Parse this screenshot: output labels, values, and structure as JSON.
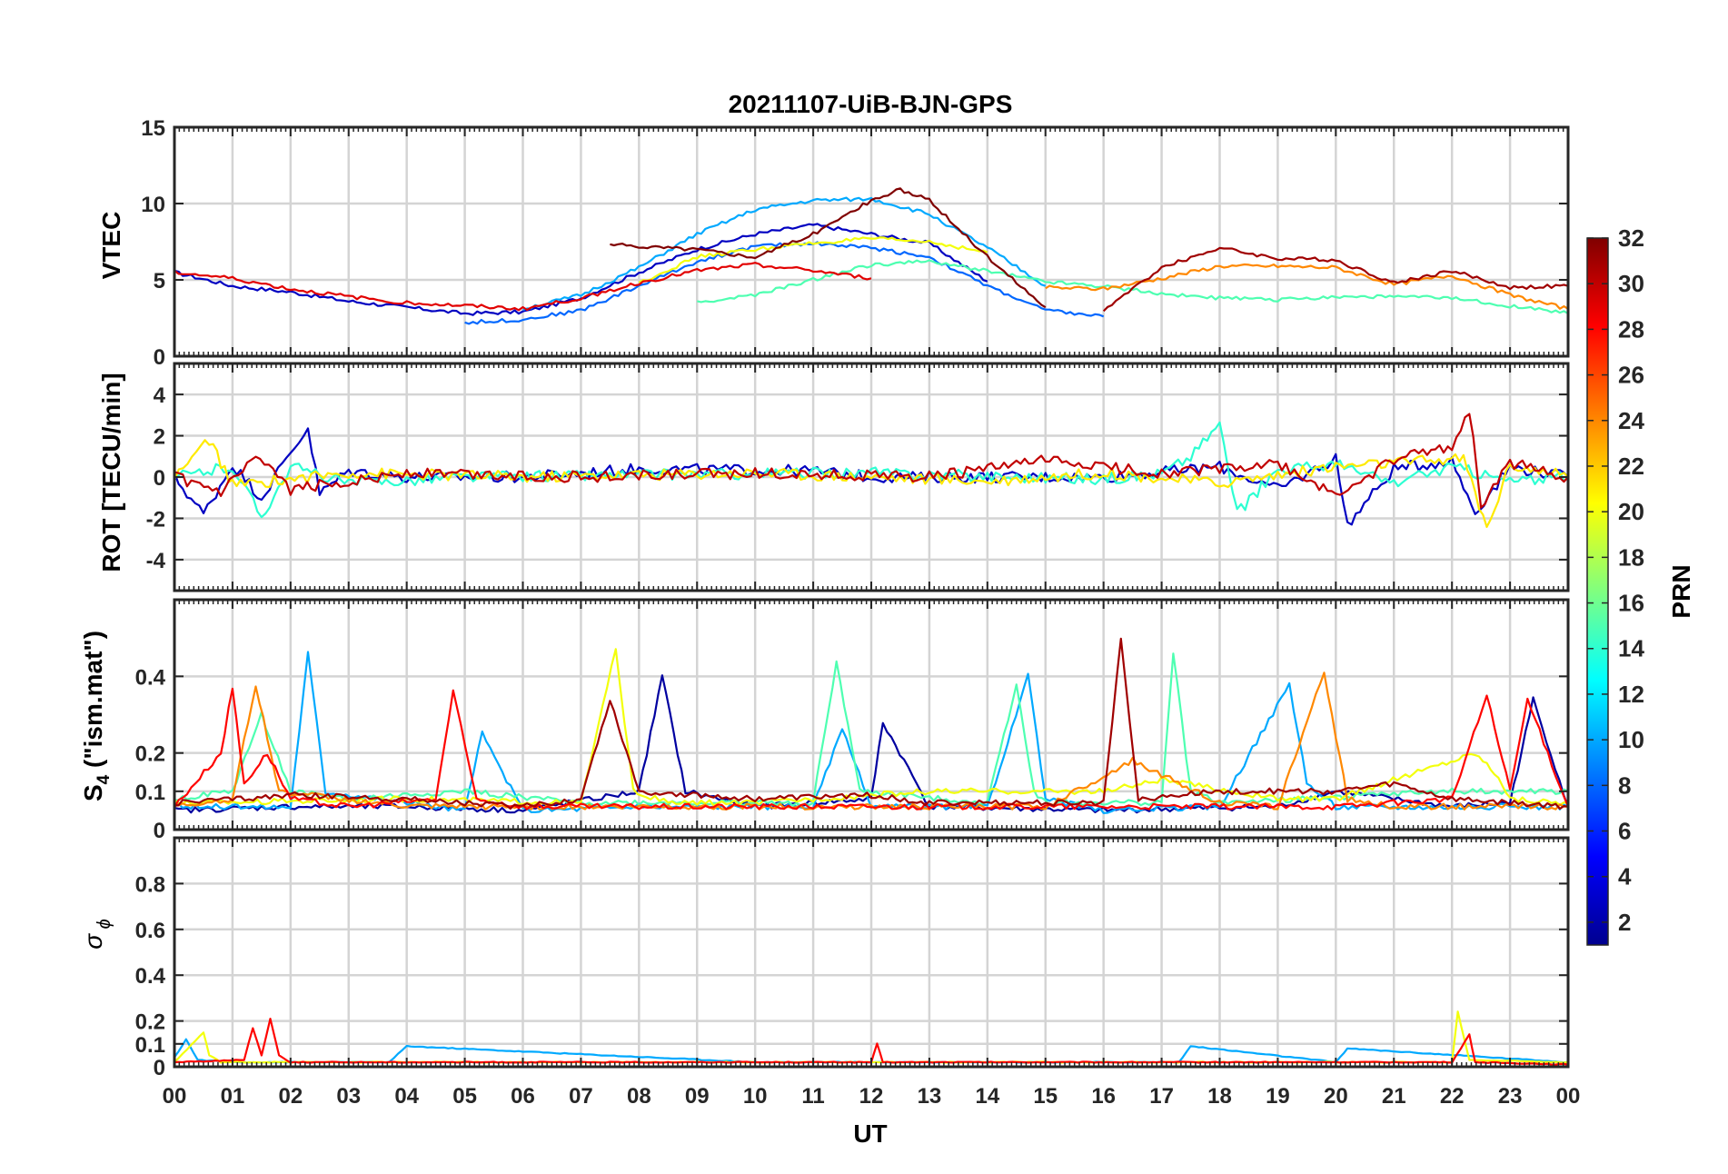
{
  "figure": {
    "title": "20211107-UiB-BJN-GPS"
  },
  "chart_data": [
    {
      "type": "line",
      "panel": "vtec",
      "ylabel": "VTEC",
      "ylim": [
        0,
        15
      ],
      "yticks": [
        0,
        5,
        10,
        15
      ],
      "xlim": [
        0,
        24
      ],
      "grid": true,
      "series": [
        {
          "prn": 3,
          "x": [
            0,
            1,
            2,
            3,
            4,
            5,
            6,
            7,
            8,
            9,
            10,
            11,
            12,
            13,
            14
          ],
          "y": [
            5.5,
            4.6,
            4.2,
            3.6,
            3.2,
            2.8,
            2.9,
            3.8,
            5.5,
            7.0,
            8.0,
            8.6,
            8.0,
            7.4,
            4.9
          ]
        },
        {
          "prn": 8,
          "x": [
            5,
            6,
            7,
            8,
            9,
            10,
            11,
            12,
            13,
            14,
            15,
            16
          ],
          "y": [
            2.2,
            2.4,
            3.0,
            4.6,
            6.2,
            7.2,
            7.4,
            7.1,
            6.5,
            4.6,
            3.0,
            2.6
          ]
        },
        {
          "prn": 10,
          "x": [
            6,
            7,
            8,
            9,
            10,
            11,
            12,
            13,
            14,
            15
          ],
          "y": [
            3.1,
            4.0,
            5.8,
            8.0,
            9.6,
            10.2,
            10.3,
            9.3,
            7.1,
            4.6
          ]
        },
        {
          "prn": 15,
          "x": [
            9,
            10,
            11,
            12,
            13,
            14,
            15,
            16,
            17,
            18,
            19,
            20,
            21,
            22,
            23,
            24
          ],
          "y": [
            3.5,
            4.0,
            5.0,
            6.0,
            6.2,
            5.6,
            4.9,
            4.6,
            4.1,
            3.8,
            3.7,
            3.9,
            3.9,
            3.8,
            3.3,
            2.8
          ]
        },
        {
          "prn": 20,
          "x": [
            8,
            9,
            10,
            11,
            12,
            13,
            14
          ],
          "y": [
            4.8,
            6.5,
            7.0,
            7.4,
            7.7,
            7.5,
            6.8
          ]
        },
        {
          "prn": 24,
          "x": [
            15,
            16,
            17,
            18,
            19,
            20,
            21,
            22,
            23,
            24
          ],
          "y": [
            4.5,
            4.4,
            5.1,
            5.9,
            5.9,
            5.8,
            4.7,
            5.3,
            4.0,
            3.1
          ]
        },
        {
          "prn": 29,
          "x": [
            0,
            1,
            2,
            3,
            4,
            5,
            6,
            7,
            8,
            9,
            10,
            11,
            12
          ],
          "y": [
            5.5,
            5.1,
            4.4,
            3.9,
            3.5,
            3.3,
            3.1,
            3.8,
            4.8,
            5.6,
            6.0,
            5.6,
            5.1
          ]
        },
        {
          "prn": 32,
          "x": [
            7.5,
            8,
            9,
            10,
            11,
            12,
            12.5,
            13,
            14,
            15
          ],
          "y": [
            7.3,
            7.2,
            7.0,
            6.5,
            8.0,
            10.2,
            10.9,
            10.2,
            6.5,
            3.2
          ]
        },
        {
          "prn": 31,
          "x": [
            16,
            17,
            18,
            19,
            20,
            21,
            22,
            23,
            24
          ],
          "y": [
            3.0,
            5.8,
            7.1,
            6.4,
            6.3,
            4.8,
            5.6,
            4.5,
            4.6
          ]
        }
      ]
    },
    {
      "type": "line",
      "panel": "rot",
      "ylabel": "ROT [TECU/min]",
      "ylim": [
        -5.5,
        5.5
      ],
      "yticks": [
        -4,
        -2,
        0,
        2,
        4
      ],
      "xlim": [
        0,
        24
      ],
      "grid": true,
      "series": [
        {
          "prn": 3,
          "x": [
            0,
            0.5,
            1,
            1.5,
            2,
            2.3,
            2.5,
            3,
            4,
            6,
            8,
            11,
            12,
            16,
            18,
            19,
            20,
            20.2,
            21,
            22,
            22.4,
            23,
            24
          ],
          "y": [
            0,
            -1.8,
            0.6,
            -1.0,
            1.2,
            2.4,
            -0.8,
            0.3,
            0,
            0,
            0.4,
            0.3,
            0,
            0,
            0.5,
            -0.6,
            0.9,
            -2.3,
            0.4,
            0.8,
            -1.7,
            0.5,
            0
          ]
        },
        {
          "prn": 14,
          "x": [
            0,
            1,
            1.5,
            2,
            3,
            5,
            8,
            12,
            16,
            17,
            17.5,
            18,
            18.3,
            19,
            20,
            21,
            22,
            23,
            24
          ],
          "y": [
            0,
            0.5,
            -1.9,
            0.5,
            -0.3,
            0,
            0.1,
            0.2,
            -0.1,
            0.2,
            1.0,
            2.6,
            -1.8,
            0.4,
            0.6,
            -0.3,
            0.5,
            -0.2,
            0
          ]
        },
        {
          "prn": 21,
          "x": [
            0,
            0.6,
            1,
            3,
            6,
            10,
            14,
            16,
            18,
            20,
            22.2,
            22.6,
            23,
            24
          ],
          "y": [
            0,
            1.8,
            -0.4,
            0.2,
            0,
            0.2,
            -0.2,
            0.2,
            -0.3,
            0.5,
            0.9,
            -2.5,
            0.6,
            0
          ]
        },
        {
          "prn": 30,
          "x": [
            0,
            0.8,
            1.4,
            2,
            4,
            7,
            10,
            13,
            15,
            17,
            19,
            20,
            21,
            22,
            22.3,
            22.5,
            23,
            24
          ],
          "y": [
            0,
            -0.8,
            0.9,
            -0.6,
            0.2,
            0,
            0.2,
            0,
            0.8,
            0.2,
            0.6,
            -0.9,
            0.8,
            1.5,
            3.3,
            -1.4,
            0.7,
            0
          ]
        }
      ]
    },
    {
      "type": "line",
      "panel": "s4",
      "ylabel": "S4 (\"ism.mat\")",
      "ylim": [
        0,
        0.6
      ],
      "yticks": [
        0,
        0.1,
        0.2,
        0.4
      ],
      "xlim": [
        0,
        24
      ],
      "grid": true,
      "series": [
        {
          "prn": 2,
          "x": [
            0,
            2,
            4,
            6,
            8,
            8.4,
            8.8,
            10,
            12,
            12.2,
            13,
            16,
            19,
            20,
            22,
            23,
            23.4,
            24
          ],
          "y": [
            0.05,
            0.06,
            0.06,
            0.05,
            0.1,
            0.4,
            0.1,
            0.06,
            0.08,
            0.28,
            0.06,
            0.05,
            0.06,
            0.1,
            0.06,
            0.07,
            0.34,
            0.06
          ]
        },
        {
          "prn": 10,
          "x": [
            0,
            2,
            2.3,
            2.6,
            5,
            5.3,
            6,
            8,
            10,
            11,
            11.5,
            12,
            14,
            14.7,
            15,
            16,
            18,
            19.2,
            19.5,
            20,
            22,
            24
          ],
          "y": [
            0.06,
            0.06,
            0.46,
            0.1,
            0.05,
            0.25,
            0.05,
            0.06,
            0.06,
            0.06,
            0.26,
            0.06,
            0.06,
            0.4,
            0.08,
            0.05,
            0.06,
            0.38,
            0.12,
            0.06,
            0.06,
            0.06
          ]
        },
        {
          "prn": 15,
          "x": [
            0,
            1,
            1.5,
            2,
            3,
            5,
            7,
            11,
            11.4,
            11.8,
            14,
            14.5,
            14.8,
            15,
            17,
            17.2,
            17.5,
            18,
            22,
            24
          ],
          "y": [
            0.08,
            0.1,
            0.3,
            0.1,
            0.08,
            0.1,
            0.07,
            0.07,
            0.44,
            0.1,
            0.07,
            0.38,
            0.1,
            0.07,
            0.07,
            0.46,
            0.1,
            0.07,
            0.1,
            0.1
          ]
        },
        {
          "prn": 20,
          "x": [
            0,
            4,
            7,
            7.6,
            7.9,
            8.5,
            10,
            13,
            16,
            17,
            19,
            20,
            22.4,
            22.8,
            23,
            24
          ],
          "y": [
            0.07,
            0.08,
            0.07,
            0.47,
            0.1,
            0.07,
            0.07,
            0.1,
            0.1,
            0.13,
            0.08,
            0.08,
            0.2,
            0.14,
            0.08,
            0.07
          ]
        },
        {
          "prn": 24,
          "x": [
            0,
            1,
            1.4,
            1.8,
            4,
            7,
            10,
            15,
            16.5,
            18,
            19,
            19.8,
            20.2,
            21,
            23,
            24
          ],
          "y": [
            0.06,
            0.08,
            0.38,
            0.1,
            0.06,
            0.06,
            0.06,
            0.06,
            0.18,
            0.07,
            0.06,
            0.41,
            0.08,
            0.06,
            0.06,
            0.06
          ]
        },
        {
          "prn": 28,
          "x": [
            0,
            0.8,
            1,
            1.2,
            1.6,
            2,
            3,
            4.5,
            4.8,
            5.2,
            6,
            8,
            10,
            14,
            17,
            20,
            22,
            22.6,
            23,
            23.3,
            24
          ],
          "y": [
            0.06,
            0.2,
            0.37,
            0.12,
            0.2,
            0.08,
            0.06,
            0.08,
            0.36,
            0.08,
            0.06,
            0.06,
            0.06,
            0.06,
            0.06,
            0.06,
            0.08,
            0.35,
            0.1,
            0.34,
            0.06
          ]
        },
        {
          "prn": 31,
          "x": [
            0,
            2,
            4,
            6,
            7,
            7.5,
            8,
            10,
            12,
            13,
            16,
            16.3,
            16.6,
            18,
            20,
            21,
            22,
            24
          ],
          "y": [
            0.07,
            0.09,
            0.08,
            0.06,
            0.08,
            0.34,
            0.1,
            0.08,
            0.09,
            0.07,
            0.07,
            0.5,
            0.08,
            0.1,
            0.1,
            0.12,
            0.08,
            0.06
          ]
        }
      ]
    },
    {
      "type": "line",
      "panel": "sigma_phi",
      "ylabel": "σ ϕ",
      "ylim": [
        0,
        1
      ],
      "yticks": [
        0,
        0.1,
        0.2,
        0.4,
        0.6,
        0.8
      ],
      "xlim": [
        0,
        24
      ],
      "grid": true,
      "series": [
        {
          "prn": 10,
          "x": [
            0,
            0.2,
            0.4,
            1,
            3.7,
            4,
            10,
            17.3,
            17.5,
            20,
            20.2,
            24
          ],
          "y": [
            0.04,
            0.12,
            0.03,
            0.02,
            0.02,
            0.09,
            0.02,
            0.02,
            0.09,
            0.02,
            0.08,
            0.02
          ]
        },
        {
          "prn": 20,
          "x": [
            0,
            0.5,
            0.6,
            0.8,
            2,
            12,
            22,
            22.1,
            22.3,
            24
          ],
          "y": [
            0.02,
            0.15,
            0.05,
            0.02,
            0.02,
            0.02,
            0.02,
            0.24,
            0.03,
            0.02
          ]
        },
        {
          "prn": 28,
          "x": [
            0,
            1.2,
            1.35,
            1.5,
            1.65,
            1.8,
            2,
            12,
            12.1,
            12.2,
            22,
            22.3,
            22.4,
            24
          ],
          "y": [
            0.02,
            0.03,
            0.17,
            0.05,
            0.21,
            0.05,
            0.02,
            0.02,
            0.1,
            0.02,
            0.02,
            0.14,
            0.02,
            0.01
          ]
        }
      ]
    }
  ],
  "xaxis": {
    "label": "UT",
    "ticks": [
      "00",
      "01",
      "02",
      "03",
      "04",
      "05",
      "06",
      "07",
      "08",
      "09",
      "10",
      "11",
      "12",
      "13",
      "14",
      "15",
      "16",
      "17",
      "18",
      "19",
      "20",
      "21",
      "22",
      "23",
      "00"
    ]
  },
  "colorbar": {
    "label": "PRN",
    "range": [
      1,
      32
    ],
    "ticks": [
      "2",
      "4",
      "6",
      "8",
      "10",
      "12",
      "14",
      "16",
      "18",
      "20",
      "22",
      "24",
      "26",
      "28",
      "30",
      "32"
    ],
    "colormap": "jet"
  }
}
